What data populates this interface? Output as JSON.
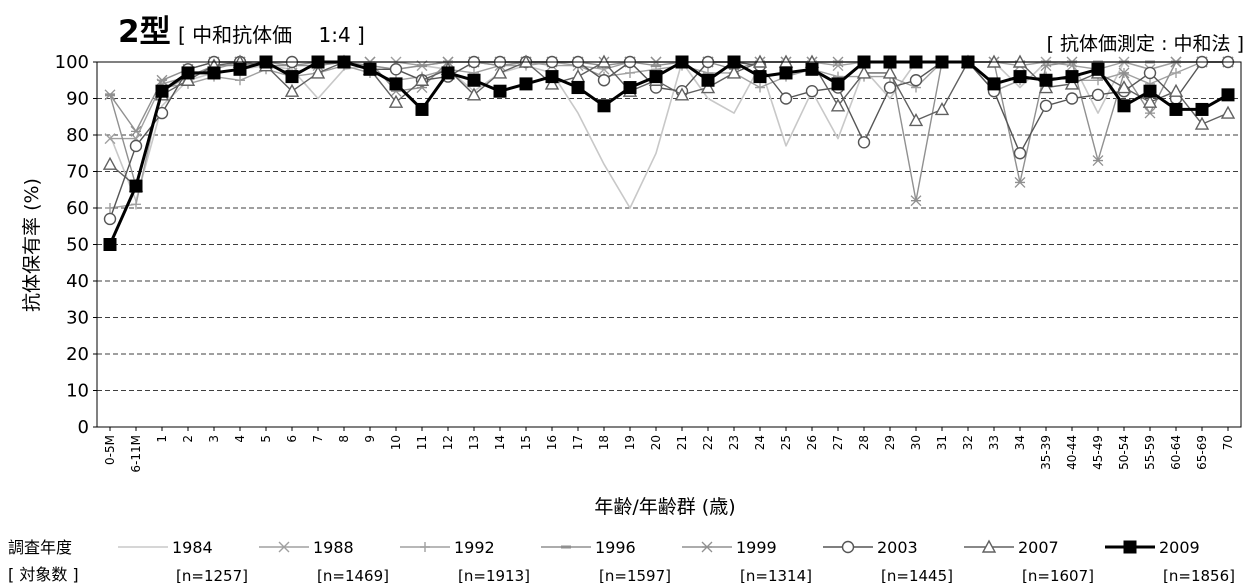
{
  "header": {
    "type_label": "2型",
    "subtitle": "[ 中和抗体価　 1:4 ]",
    "method_note": "[ 抗体価測定 : 中和法 ]"
  },
  "legend": {
    "row1_label": "調査年度",
    "row2_label": "[ 対象数 ]"
  },
  "colors": {
    "c1984": "#c8c8c8",
    "c1988": "#a0a0a0",
    "c1992": "#a0a0a0",
    "c1996": "#909090",
    "c1999": "#909090",
    "c2003": "#555555",
    "c2007": "#606060",
    "c2009": "#000000"
  },
  "chart_data": {
    "type": "line",
    "xlabel": "年齢/年齢群 (歳)",
    "ylabel": "抗体保有率 (%)",
    "ylim": [
      0,
      100
    ],
    "yticks": [
      0,
      10,
      20,
      30,
      40,
      50,
      60,
      70,
      80,
      90,
      100
    ],
    "grid": "horizontal dashed",
    "categories": [
      "0-5M",
      "6-11M",
      "1",
      "2",
      "3",
      "4",
      "5",
      "6",
      "7",
      "8",
      "9",
      "10",
      "11",
      "12",
      "13",
      "14",
      "15",
      "16",
      "17",
      "18",
      "19",
      "20",
      "21",
      "22",
      "23",
      "24",
      "25",
      "26",
      "27",
      "28",
      "29",
      "30",
      "31",
      "32",
      "33",
      "34",
      "35-39",
      "40-44",
      "45-49",
      "50-54",
      "55-59",
      "60-64",
      "65-69",
      "70"
    ],
    "series": [
      {
        "name": "1984",
        "n": "[n=1257]",
        "marker": "none",
        "color": "#c8c8c8",
        "width": 1.6,
        "values": [
          80,
          62,
          88,
          95,
          97,
          98,
          99,
          98,
          90,
          98,
          99,
          98,
          99,
          98,
          92,
          97,
          99,
          97,
          86,
          72,
          60,
          75,
          100,
          90,
          86,
          99,
          77,
          92,
          79,
          98,
          90,
          100,
          100,
          100,
          100,
          93,
          100,
          100,
          86,
          100,
          98,
          100,
          100,
          100
        ]
      },
      {
        "name": "1988",
        "n": "[n=1469]",
        "marker": "x",
        "color": "#a0a0a0",
        "width": 1.4,
        "values": [
          79,
          79,
          94,
          96,
          98,
          100,
          99,
          97,
          99,
          100,
          100,
          100,
          99,
          100,
          100,
          99,
          100,
          99,
          99,
          98,
          100,
          100,
          100,
          100,
          100,
          100,
          100,
          100,
          99,
          100,
          100,
          100,
          100,
          100,
          100,
          99,
          100,
          99,
          98,
          100,
          98,
          100,
          100,
          100
        ]
      },
      {
        "name": "1992",
        "n": "[n=1913]",
        "marker": "plus",
        "color": "#a0a0a0",
        "width": 1.4,
        "values": [
          60,
          61,
          93,
          94,
          96,
          95,
          98,
          96,
          97,
          99,
          97,
          95,
          96,
          98,
          97,
          99,
          99,
          100,
          99,
          96,
          97,
          98,
          99,
          97,
          97,
          93,
          96,
          98,
          96,
          96,
          96,
          93,
          100,
          100,
          92,
          95,
          96,
          95,
          95,
          97,
          94,
          97,
          100,
          100
        ]
      },
      {
        "name": "1996",
        "n": "[n=1597]",
        "marker": "dash",
        "color": "#909090",
        "width": 1.4,
        "values": [
          91,
          66,
          92,
          96,
          99,
          99,
          100,
          99,
          99,
          100,
          99,
          98,
          99,
          100,
          100,
          99,
          100,
          100,
          100,
          99,
          100,
          99,
          100,
          100,
          100,
          100,
          100,
          100,
          100,
          100,
          100,
          100,
          100,
          100,
          100,
          100,
          100,
          100,
          100,
          100,
          100,
          100,
          100,
          100
        ]
      },
      {
        "name": "1999",
        "n": "[n=1314]",
        "marker": "asterisk",
        "color": "#909090",
        "width": 1.4,
        "values": [
          91,
          81,
          95,
          98,
          100,
          100,
          99,
          99,
          100,
          100,
          100,
          92,
          93,
          100,
          100,
          100,
          100,
          100,
          100,
          100,
          100,
          100,
          100,
          100,
          98,
          100,
          100,
          100,
          100,
          100,
          100,
          62,
          100,
          100,
          100,
          67,
          99,
          100,
          73,
          97,
          86,
          100,
          100,
          100
        ]
      },
      {
        "name": "2003",
        "n": "[n=1445]",
        "marker": "circle",
        "color": "#555555",
        "width": 1.4,
        "values": [
          57,
          77,
          86,
          98,
          100,
          100,
          100,
          100,
          100,
          100,
          98,
          98,
          95,
          96,
          100,
          100,
          100,
          100,
          100,
          95,
          100,
          93,
          92,
          100,
          100,
          99,
          90,
          92,
          93,
          78,
          93,
          95,
          100,
          100,
          92,
          75,
          88,
          90,
          91,
          92,
          97,
          90,
          100,
          100
        ]
      },
      {
        "name": "2007",
        "n": "[n=1607]",
        "marker": "triangle",
        "color": "#606060",
        "width": 1.4,
        "values": [
          72,
          66,
          91,
          95,
          99,
          100,
          99,
          92,
          97,
          100,
          98,
          89,
          95,
          98,
          91,
          97,
          100,
          94,
          96,
          100,
          92,
          95,
          91,
          93,
          97,
          100,
          100,
          100,
          88,
          97,
          97,
          84,
          87,
          100,
          100,
          100,
          93,
          94,
          97,
          93,
          89,
          92,
          83,
          86
        ]
      },
      {
        "name": "2009",
        "n": "[n=1856]",
        "marker": "square",
        "color": "#000000",
        "width": 3,
        "values": [
          50,
          66,
          92,
          97,
          97,
          98,
          100,
          96,
          100,
          100,
          98,
          94,
          87,
          97,
          95,
          92,
          94,
          96,
          93,
          88,
          93,
          96,
          100,
          95,
          100,
          96,
          97,
          98,
          94,
          100,
          100,
          100,
          100,
          100,
          94,
          96,
          95,
          96,
          98,
          88,
          92,
          87,
          87,
          91
        ]
      }
    ]
  }
}
